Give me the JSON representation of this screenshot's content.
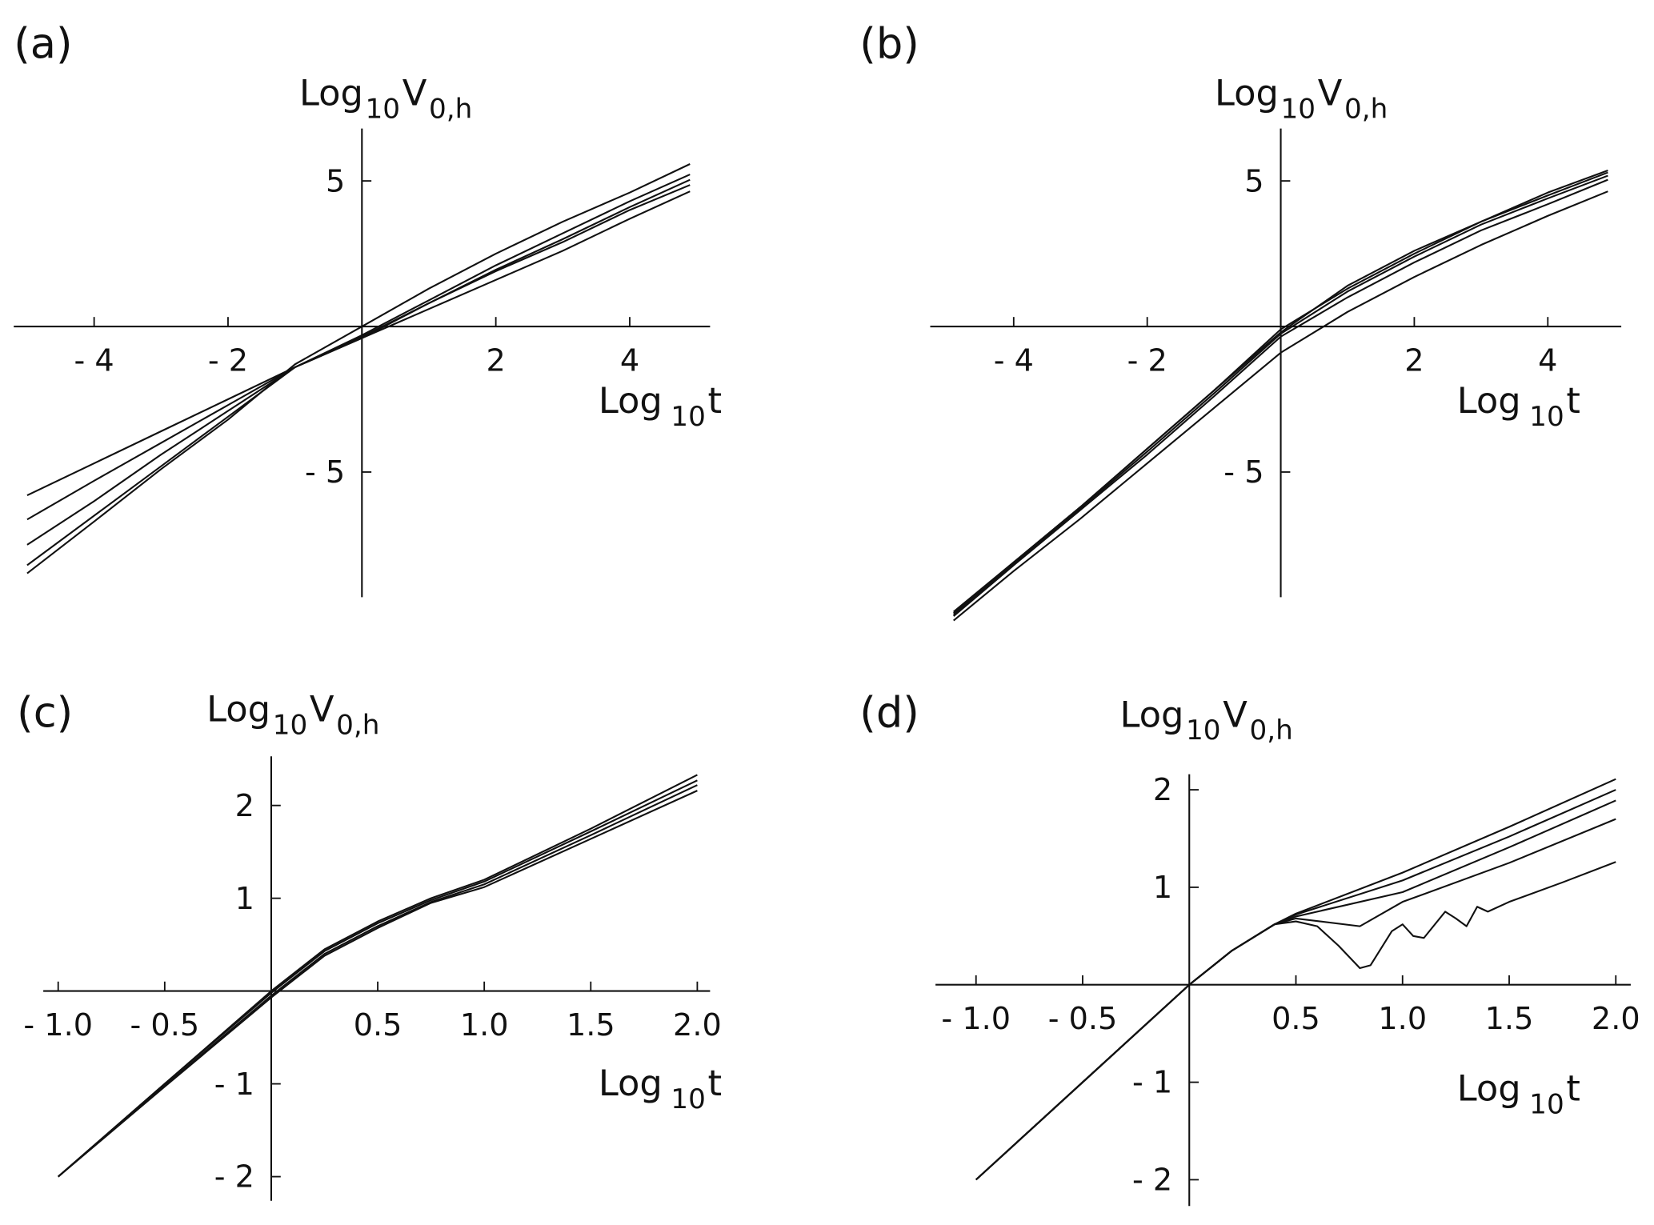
{
  "chart_data": [
    {
      "type": "line",
      "panel_label": "(a)",
      "x_label": [
        "Log",
        "10",
        "t"
      ],
      "y_label": [
        "Log",
        "10",
        "V",
        "0,h"
      ],
      "xlim": [
        -5.2,
        5.2
      ],
      "ylim": [
        -9.3,
        6.8
      ],
      "xticks": [
        {
          "value": -4,
          "label": "- 4"
        },
        {
          "value": -2,
          "label": "- 2"
        },
        2,
        4
      ],
      "yticks": [
        {
          "value": -5,
          "label": "- 5"
        },
        5
      ],
      "x": [
        -5,
        -4,
        -3,
        -2,
        -1,
        0,
        1,
        2,
        3,
        4,
        4.9
      ],
      "series": [
        {
          "color": "#111111",
          "values": [
            -5.8,
            -4.7,
            -3.6,
            -2.5,
            -1.4,
            -0.4,
            0.6,
            1.6,
            2.6,
            3.7,
            4.64
          ]
        },
        {
          "color": "#111111",
          "values": [
            -6.63,
            -5.3,
            -4.0,
            -2.7,
            -1.4,
            -0.35,
            0.8,
            1.9,
            2.9,
            4.0,
            4.86
          ]
        },
        {
          "color": "#111111",
          "values": [
            -7.5,
            -6.0,
            -4.4,
            -2.9,
            -1.4,
            -0.4,
            0.8,
            1.95,
            3.0,
            4.1,
            5.04
          ]
        },
        {
          "color": "#111111",
          "values": [
            -8.2,
            -6.5,
            -4.8,
            -3.1,
            -1.4,
            -0.3,
            0.9,
            2.1,
            3.2,
            4.3,
            5.22
          ]
        },
        {
          "color": "#111111",
          "values": [
            -8.48,
            -6.7,
            -4.9,
            -3.2,
            -1.3,
            0.0,
            1.3,
            2.5,
            3.6,
            4.6,
            5.58
          ]
        }
      ]
    },
    {
      "type": "line",
      "panel_label": "(b)",
      "x_label": [
        "Log",
        "10",
        "t"
      ],
      "y_label": [
        "Log",
        "10",
        "V",
        "0,h"
      ],
      "xlim": [
        -5.25,
        5.1
      ],
      "ylim": [
        -9.3,
        6.8
      ],
      "xticks": [
        {
          "value": -4,
          "label": "- 4"
        },
        {
          "value": -2,
          "label": "- 2"
        },
        2,
        4
      ],
      "yticks": [
        {
          "value": -5,
          "label": "- 5"
        },
        5
      ],
      "x": [
        -4.9,
        -4,
        -3,
        -2,
        -1,
        0,
        1,
        2,
        3,
        4,
        4.9
      ],
      "series": [
        {
          "color": "#111111",
          "values": [
            -9.8,
            -8.1,
            -6.2,
            -4.2,
            -2.2,
            -0.2,
            1.4,
            2.6,
            3.6,
            4.6,
            5.36
          ]
        },
        {
          "color": "#111111",
          "values": [
            -9.85,
            -8.1,
            -6.2,
            -4.2,
            -2.2,
            -0.1,
            1.3,
            2.5,
            3.6,
            4.5,
            5.29
          ]
        },
        {
          "color": "#111111",
          "values": [
            -9.9,
            -8.15,
            -6.25,
            -4.3,
            -2.3,
            -0.25,
            1.2,
            2.4,
            3.5,
            4.4,
            5.18
          ]
        },
        {
          "color": "#111111",
          "values": [
            -9.95,
            -8.2,
            -6.3,
            -4.4,
            -2.4,
            -0.35,
            1.0,
            2.2,
            3.3,
            4.2,
            5.04
          ]
        },
        {
          "color": "#111111",
          "values": [
            -10.1,
            -8.4,
            -6.6,
            -4.7,
            -2.8,
            -0.9,
            0.5,
            1.7,
            2.8,
            3.8,
            4.64
          ]
        }
      ]
    },
    {
      "type": "line",
      "panel_label": "(c)",
      "x_label": [
        "Log",
        "10",
        "t"
      ],
      "y_label": [
        "Log",
        "10",
        "V",
        "0,h"
      ],
      "xlim": [
        -1.07,
        2.06
      ],
      "ylim": [
        -2.26,
        2.53
      ],
      "xticks": [
        {
          "value": -1,
          "label": "- 1.0"
        },
        {
          "value": -0.5,
          "label": "- 0.5"
        },
        0.5,
        {
          "value": 1,
          "label": "1.0"
        },
        1.5,
        {
          "value": 2,
          "label": "2.0"
        }
      ],
      "yticks": [
        {
          "value": -2,
          "label": "- 2"
        },
        {
          "value": -1,
          "label": "- 1"
        },
        1,
        2
      ],
      "x": [
        -1,
        -0.5,
        0,
        0.25,
        0.5,
        0.75,
        1,
        1.5,
        2
      ],
      "series": [
        {
          "color": "#111111",
          "values": [
            -2.0,
            -1.0,
            0.0,
            0.45,
            0.75,
            1.0,
            1.2,
            1.75,
            2.33
          ]
        },
        {
          "color": "#111111",
          "values": [
            -2.0,
            -1.0,
            -0.02,
            0.43,
            0.73,
            0.98,
            1.18,
            1.72,
            2.27
          ]
        },
        {
          "color": "#111111",
          "values": [
            -2.0,
            -1.02,
            -0.05,
            0.4,
            0.7,
            0.96,
            1.15,
            1.68,
            2.22
          ]
        },
        {
          "color": "#111111",
          "values": [
            -2.0,
            -1.03,
            -0.07,
            0.38,
            0.68,
            0.95,
            1.12,
            1.64,
            2.16
          ]
        }
      ]
    },
    {
      "type": "line",
      "panel_label": "(d)",
      "x_label": [
        "Log",
        "10",
        "t"
      ],
      "y_label": [
        "Log",
        "10",
        "V",
        "0,h"
      ],
      "xlim": [
        -1.19,
        2.07
      ],
      "ylim": [
        -2.27,
        2.16
      ],
      "xticks": [
        {
          "value": -1,
          "label": "- 1.0"
        },
        {
          "value": -0.5,
          "label": "- 0.5"
        },
        0.5,
        {
          "value": 1,
          "label": "1.0"
        },
        1.5,
        {
          "value": 2,
          "label": "2.0"
        }
      ],
      "yticks": [
        {
          "value": -2,
          "label": "- 2"
        },
        {
          "value": -1,
          "label": "- 1"
        },
        1,
        2
      ],
      "series": [
        {
          "color": "#111111",
          "x": [
            -1,
            -0.5,
            0,
            0.2,
            0.4,
            0.5,
            1,
            1.5,
            2
          ],
          "values": [
            -2.0,
            -1.0,
            0,
            0.35,
            0.62,
            0.73,
            1.15,
            1.62,
            2.11
          ]
        },
        {
          "color": "#111111",
          "x": [
            -1,
            -0.5,
            0,
            0.2,
            0.4,
            0.5,
            1,
            1.5,
            2
          ],
          "values": [
            -2.0,
            -1.0,
            0,
            0.35,
            0.62,
            0.72,
            1.07,
            1.52,
            2.0
          ]
        },
        {
          "color": "#111111",
          "x": [
            -1,
            -0.5,
            0,
            0.2,
            0.4,
            0.5,
            1,
            1.5,
            2
          ],
          "values": [
            -2.0,
            -1.0,
            0,
            0.35,
            0.62,
            0.7,
            0.95,
            1.41,
            1.89
          ]
        },
        {
          "color": "#111111",
          "x": [
            -1,
            -0.5,
            0,
            0.2,
            0.4,
            0.5,
            0.8,
            1.0,
            1.5,
            2
          ],
          "values": [
            -2.0,
            -1.0,
            0,
            0.35,
            0.62,
            0.68,
            0.6,
            0.85,
            1.25,
            1.7
          ]
        },
        {
          "color": "#111111",
          "x": [
            -1,
            -0.5,
            0,
            0.2,
            0.4,
            0.5,
            0.6,
            0.7,
            0.8,
            0.85,
            0.95,
            1.0,
            1.05,
            1.1,
            1.2,
            1.25,
            1.3,
            1.35,
            1.4,
            1.5,
            1.75,
            2.0
          ],
          "values": [
            -2.0,
            -1.0,
            0,
            0.35,
            0.62,
            0.65,
            0.6,
            0.4,
            0.17,
            0.2,
            0.55,
            0.62,
            0.5,
            0.48,
            0.75,
            0.68,
            0.6,
            0.8,
            0.75,
            0.85,
            1.05,
            1.26
          ]
        }
      ]
    }
  ]
}
